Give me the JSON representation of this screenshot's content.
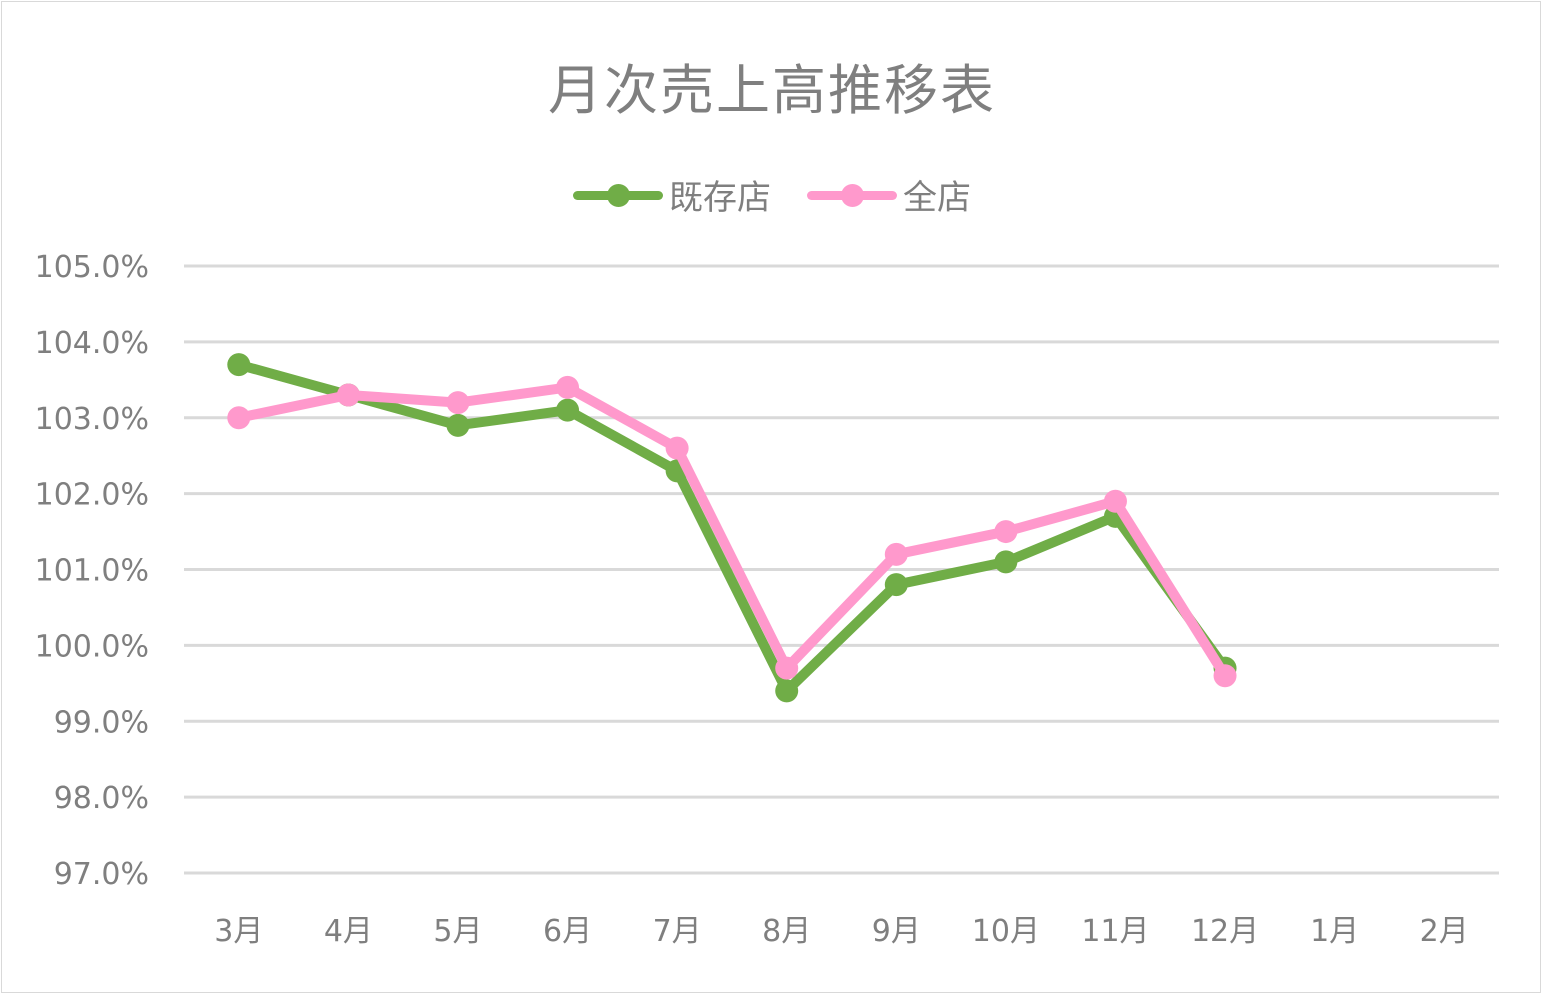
{
  "chart_title": "月次売上高推移表",
  "legend": [
    {
      "label": "既存店",
      "color": "#70ad47"
    },
    {
      "label": "全店",
      "color": "#ff99cc"
    }
  ],
  "chart_data": {
    "type": "line",
    "title": "月次売上高推移表",
    "xlabel": "",
    "ylabel": "",
    "categories": [
      "3月",
      "4月",
      "5月",
      "6月",
      "7月",
      "8月",
      "9月",
      "10月",
      "11月",
      "12月",
      "1月",
      "2月"
    ],
    "series": [
      {
        "name": "既存店",
        "color": "#70ad47",
        "values": [
          103.7,
          103.3,
          102.9,
          103.1,
          102.3,
          99.4,
          100.8,
          101.1,
          101.7,
          99.7,
          null,
          null
        ]
      },
      {
        "name": "全店",
        "color": "#ff99cc",
        "values": [
          103.0,
          103.3,
          103.2,
          103.4,
          102.6,
          99.7,
          101.2,
          101.5,
          101.9,
          99.6,
          null,
          null
        ]
      }
    ],
    "ylim": [
      97.0,
      105.0
    ],
    "yticks": [
      "105.0%",
      "104.0%",
      "103.0%",
      "102.0%",
      "101.0%",
      "100.0%",
      "99.0%",
      "98.0%",
      "97.0%"
    ],
    "ytick_values": [
      105,
      104,
      103,
      102,
      101,
      100,
      99,
      98,
      97
    ],
    "grid": true,
    "legend_position": "top",
    "markers": true
  }
}
